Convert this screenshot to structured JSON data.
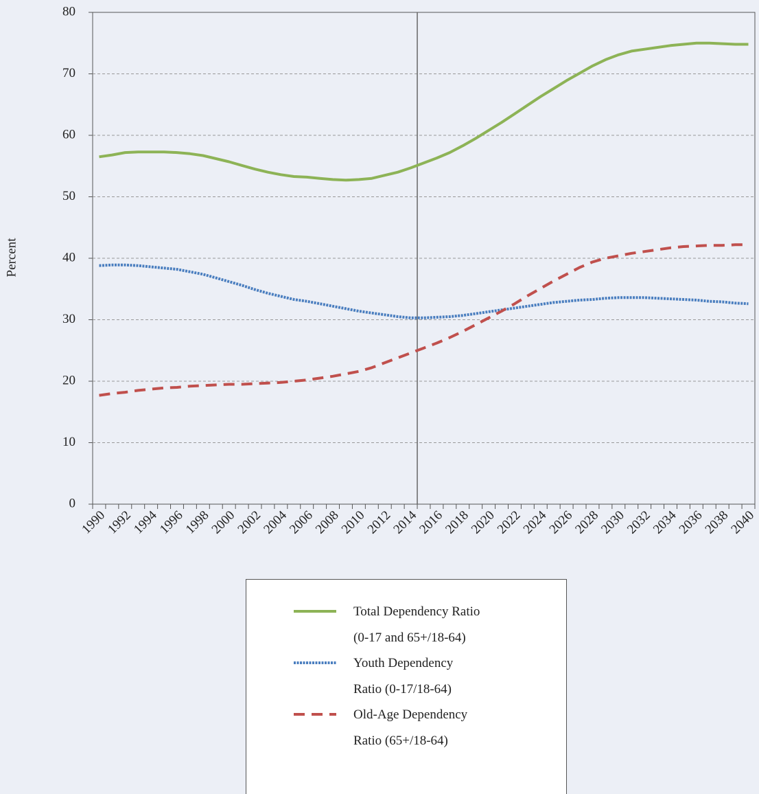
{
  "chart_data": {
    "type": "line",
    "y_label": "Percent",
    "categories": [
      "1990",
      null,
      "1992",
      null,
      "1994",
      null,
      "1996",
      null,
      "1998",
      null,
      "2000",
      null,
      "2002",
      null,
      "2004",
      null,
      "2006",
      null,
      "2008",
      null,
      "2010",
      null,
      "2012",
      null,
      "2014",
      null,
      "2016",
      null,
      "2018",
      null,
      "2020",
      null,
      "2022",
      null,
      "2024",
      null,
      "2026",
      null,
      "2028",
      null,
      "2030",
      null,
      "2032",
      null,
      "2034",
      null,
      "2036",
      null,
      "2038",
      null,
      "2040"
    ],
    "series": [
      {
        "name": "Total Dependency Ratio\n(0-17 and 65+/18-64)",
        "color": "#8db356",
        "style": "solid",
        "values": [
          56.5,
          56.8,
          57.2,
          57.3,
          57.3,
          57.3,
          57.2,
          57.0,
          56.7,
          56.2,
          55.7,
          55.1,
          54.5,
          54.0,
          53.6,
          53.3,
          53.2,
          53.0,
          52.8,
          52.7,
          52.8,
          53.0,
          53.5,
          54.0,
          54.7,
          55.5,
          56.3,
          57.2,
          58.3,
          59.5,
          60.8,
          62.1,
          63.5,
          64.9,
          66.3,
          67.6,
          68.9,
          70.1,
          71.3,
          72.3,
          73.1,
          73.7,
          74.0,
          74.3,
          74.6,
          74.8,
          75.0,
          75.0,
          74.9,
          74.8,
          74.8
        ]
      },
      {
        "name": "Youth Dependency\nRatio (0-17/18-64)",
        "color": "#4a7ebf",
        "style": "dotted",
        "values": [
          38.8,
          38.9,
          38.9,
          38.8,
          38.6,
          38.4,
          38.2,
          37.8,
          37.4,
          36.8,
          36.2,
          35.6,
          34.9,
          34.3,
          33.8,
          33.3,
          33.0,
          32.6,
          32.2,
          31.8,
          31.4,
          31.1,
          30.8,
          30.5,
          30.3,
          30.3,
          30.4,
          30.5,
          30.7,
          31.0,
          31.3,
          31.6,
          31.9,
          32.2,
          32.5,
          32.8,
          33.0,
          33.2,
          33.3,
          33.5,
          33.6,
          33.6,
          33.6,
          33.5,
          33.4,
          33.3,
          33.2,
          33.0,
          32.9,
          32.7,
          32.6
        ]
      },
      {
        "name": "Old-Age Dependency\nRatio (65+/18-64)",
        "color": "#c0504d",
        "style": "dashed",
        "values": [
          17.7,
          18.0,
          18.2,
          18.5,
          18.7,
          18.9,
          19.0,
          19.2,
          19.3,
          19.4,
          19.5,
          19.5,
          19.6,
          19.7,
          19.8,
          20.0,
          20.2,
          20.5,
          20.8,
          21.2,
          21.6,
          22.2,
          23.0,
          23.8,
          24.6,
          25.4,
          26.2,
          27.1,
          28.1,
          29.2,
          30.3,
          31.4,
          32.6,
          33.9,
          35.1,
          36.3,
          37.4,
          38.5,
          39.4,
          40.0,
          40.4,
          40.8,
          41.1,
          41.4,
          41.7,
          41.9,
          42.0,
          42.1,
          42.1,
          42.2,
          42.2
        ]
      }
    ],
    "ylim": [
      0,
      80
    ],
    "yticks": [
      0,
      10,
      20,
      30,
      40,
      50,
      60,
      70,
      80
    ],
    "grid": true,
    "vline_after_category": "2014",
    "legend": "bottom"
  }
}
